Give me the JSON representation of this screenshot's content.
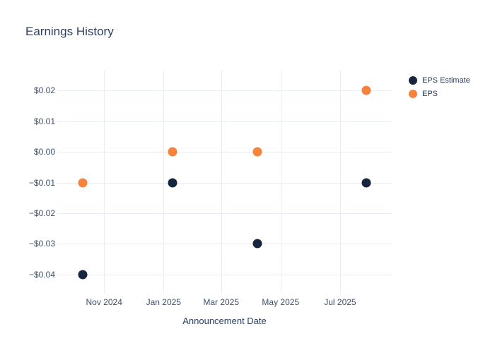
{
  "title": "Earnings History",
  "colors": {
    "background": "#ffffff",
    "title_text": "#2a3f5f",
    "tick_text": "#3d4e68",
    "gridline": "#e8edf5",
    "eps_estimate": "#15263e",
    "eps": "#f5823d"
  },
  "chart_data": {
    "type": "scatter",
    "title": "Earnings History",
    "xlabel": "Announcement Date",
    "ylabel": "",
    "grid": true,
    "legend_position": "right",
    "x": [
      "2024-10-10",
      "2025-01-10",
      "2025-04-07",
      "2025-07-28"
    ],
    "series": [
      {
        "name": "EPS Estimate",
        "color": "#15263e",
        "values": [
          -0.04,
          -0.01,
          -0.03,
          -0.01
        ]
      },
      {
        "name": "EPS",
        "color": "#f5823d",
        "values": [
          -0.01,
          0.0,
          0.0,
          0.02
        ]
      }
    ],
    "x_axis": {
      "range": [
        "2024-09-14",
        "2025-08-23"
      ],
      "ticks": [
        {
          "value": "2024-11-01",
          "label": "Nov 2024"
        },
        {
          "value": "2025-01-01",
          "label": "Jan 2025"
        },
        {
          "value": "2025-03-01",
          "label": "Mar 2025"
        },
        {
          "value": "2025-05-01",
          "label": "May 2025"
        },
        {
          "value": "2025-07-01",
          "label": "Jul 2025"
        }
      ]
    },
    "y_axis": {
      "range": [
        -0.046,
        0.0265
      ],
      "ticks": [
        {
          "value": 0.02,
          "label": "$0.02"
        },
        {
          "value": 0.01,
          "label": "$0.01"
        },
        {
          "value": 0.0,
          "label": "$0.00"
        },
        {
          "value": -0.01,
          "label": "−$0.01"
        },
        {
          "value": -0.02,
          "label": "−$0.02"
        },
        {
          "value": -0.03,
          "label": "−$0.03"
        },
        {
          "value": -0.04,
          "label": "−$0.04"
        }
      ]
    }
  }
}
